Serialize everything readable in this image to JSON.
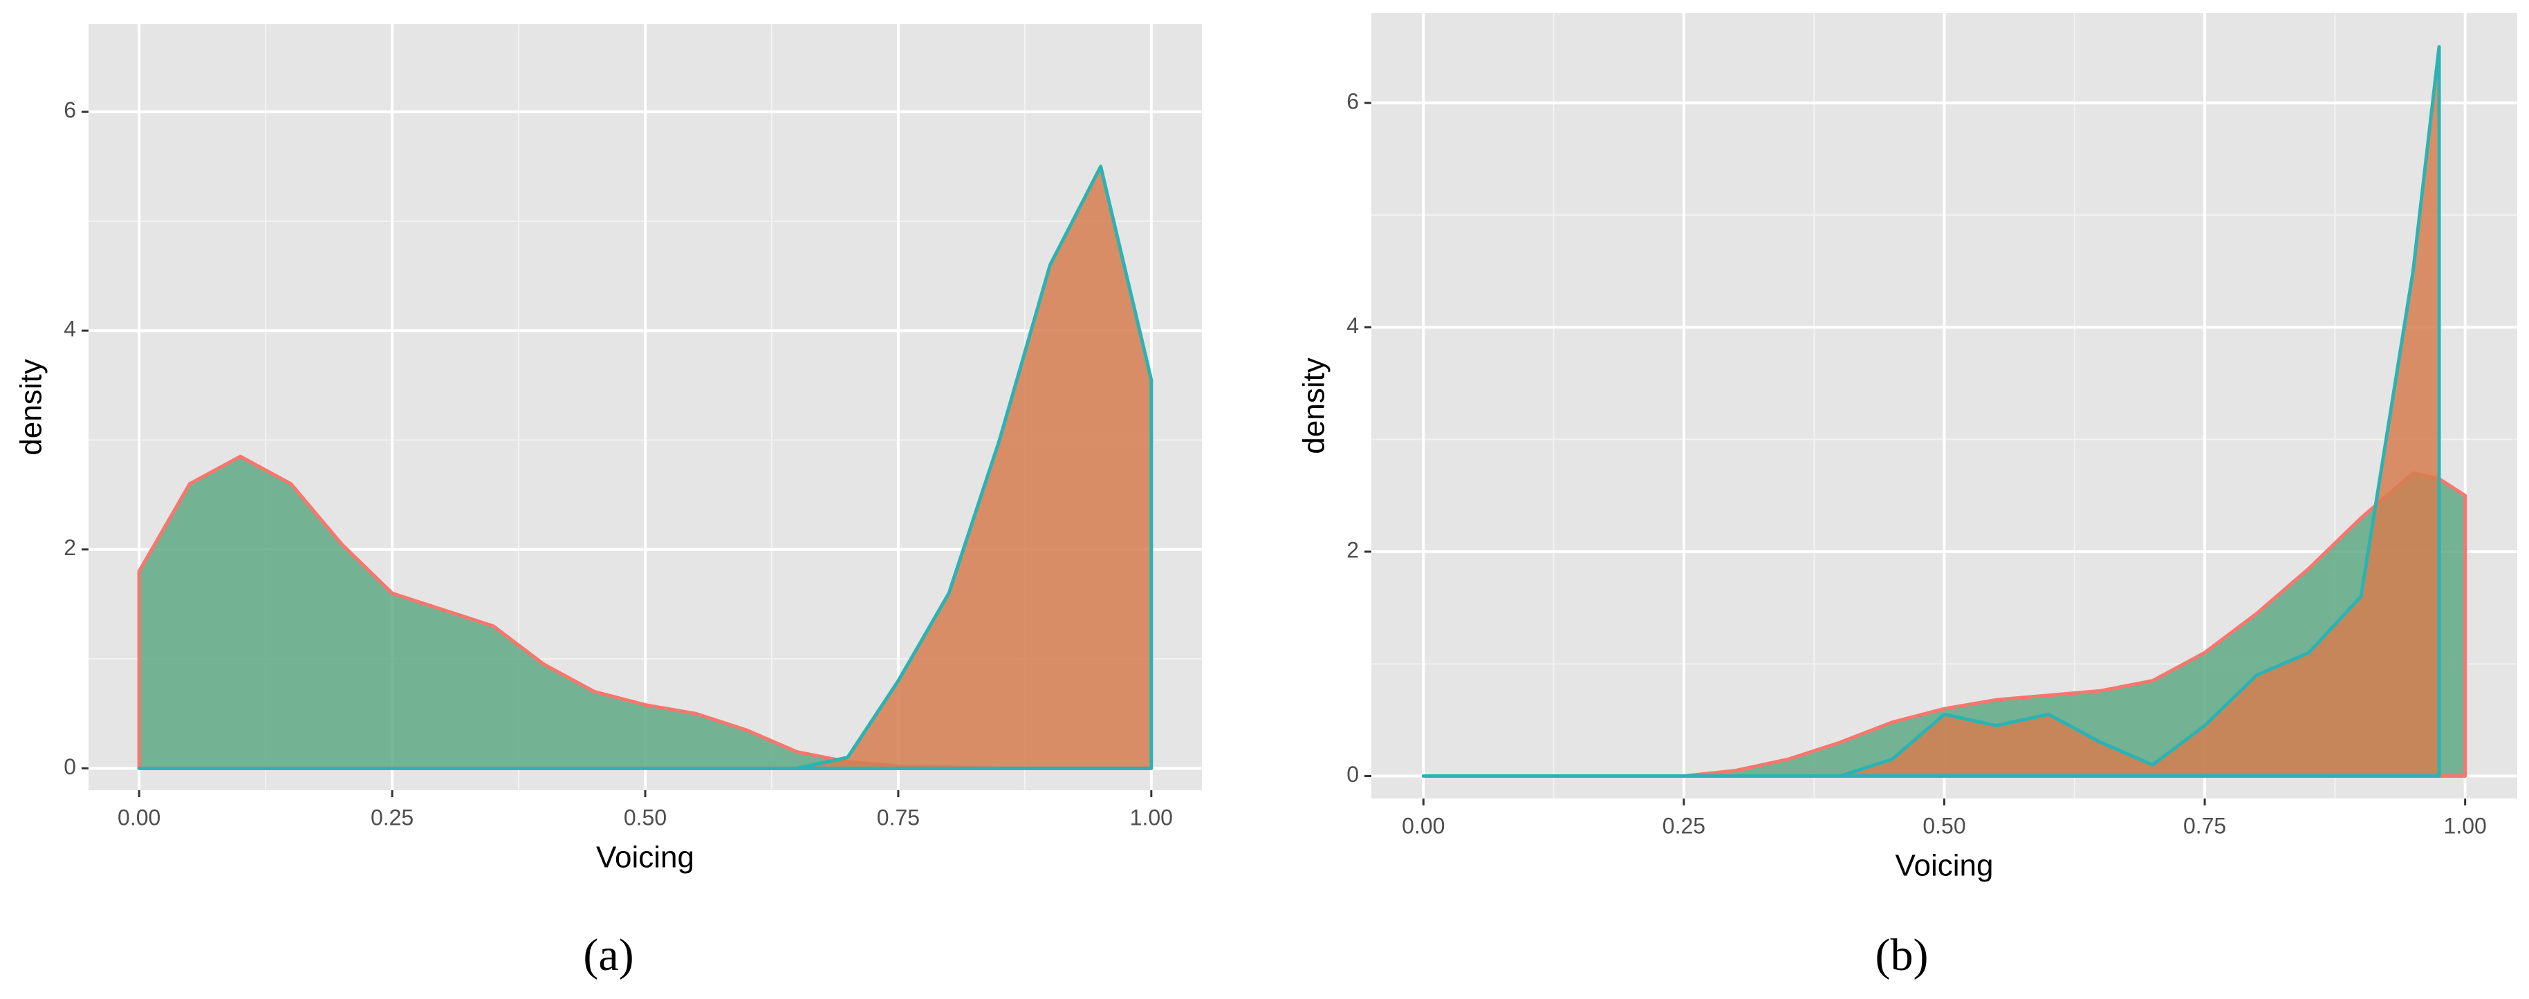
{
  "chart_data": [
    {
      "type": "area",
      "caption": "(a)",
      "xlabel": "Voicing",
      "ylabel": "density",
      "xlim": [
        -0.05,
        1.05
      ],
      "ylim": [
        -0.2,
        6.8
      ],
      "xticks": [
        {
          "value": 0,
          "label": "0.00"
        },
        {
          "value": 0.25,
          "label": "0.25"
        },
        {
          "value": 0.5,
          "label": "0.50"
        },
        {
          "value": 0.75,
          "label": "0.75"
        },
        {
          "value": 1,
          "label": "1.00"
        }
      ],
      "yticks": [
        0,
        2,
        4,
        6
      ],
      "grid": true,
      "x": [
        0,
        0.05,
        0.1,
        0.15,
        0.2,
        0.25,
        0.3,
        0.35,
        0.4,
        0.45,
        0.5,
        0.55,
        0.6,
        0.65,
        0.7,
        0.75,
        0.8,
        0.85,
        0.9,
        0.95,
        1.0
      ],
      "series": [
        {
          "color": "#f8766d",
          "fill": "#5fa985",
          "values": [
            1.8,
            2.6,
            2.85,
            2.6,
            2.05,
            1.6,
            1.45,
            1.3,
            0.95,
            0.7,
            0.58,
            0.5,
            0.35,
            0.15,
            0.06,
            0.02,
            0.01,
            0,
            0,
            0,
            0
          ]
        },
        {
          "color": "#2bb3b3",
          "fill": "#d67e50",
          "values": [
            0,
            0,
            0,
            0,
            0,
            0,
            0,
            0,
            0,
            0,
            0,
            0,
            0,
            0,
            0.1,
            0.8,
            1.6,
            3.0,
            4.6,
            5.5,
            3.55
          ]
        }
      ]
    },
    {
      "type": "area",
      "caption": "(b)",
      "xlabel": "Voicing",
      "ylabel": "density",
      "xlim": [
        -0.05,
        1.05
      ],
      "ylim": [
        -0.2,
        6.8
      ],
      "xticks": [
        {
          "value": 0,
          "label": "0.00"
        },
        {
          "value": 0.25,
          "label": "0.25"
        },
        {
          "value": 0.5,
          "label": "0.50"
        },
        {
          "value": 0.75,
          "label": "0.75"
        },
        {
          "value": 1,
          "label": "1.00"
        }
      ],
      "yticks": [
        0,
        2,
        4,
        6
      ],
      "grid": true,
      "x": [
        0,
        0.05,
        0.1,
        0.15,
        0.2,
        0.25,
        0.3,
        0.35,
        0.4,
        0.45,
        0.5,
        0.55,
        0.6,
        0.65,
        0.7,
        0.75,
        0.8,
        0.85,
        0.9,
        0.95,
        0.975,
        1.0
      ],
      "series": [
        {
          "color": "#f8766d",
          "fill": "#5fa985",
          "values": [
            0,
            0,
            0,
            0,
            0,
            0,
            0.05,
            0.15,
            0.3,
            0.48,
            0.6,
            0.68,
            0.72,
            0.76,
            0.85,
            1.1,
            1.45,
            1.85,
            2.3,
            2.7,
            2.65,
            2.5
          ]
        },
        {
          "color": "#2bb3b3",
          "fill": "#d67e50",
          "values": [
            0,
            0,
            0,
            0,
            0,
            0,
            0,
            0,
            0,
            0.15,
            0.55,
            0.45,
            0.55,
            0.3,
            0.1,
            0.45,
            0.9,
            1.1,
            1.6,
            4.5,
            6.5,
            null
          ]
        }
      ]
    }
  ]
}
